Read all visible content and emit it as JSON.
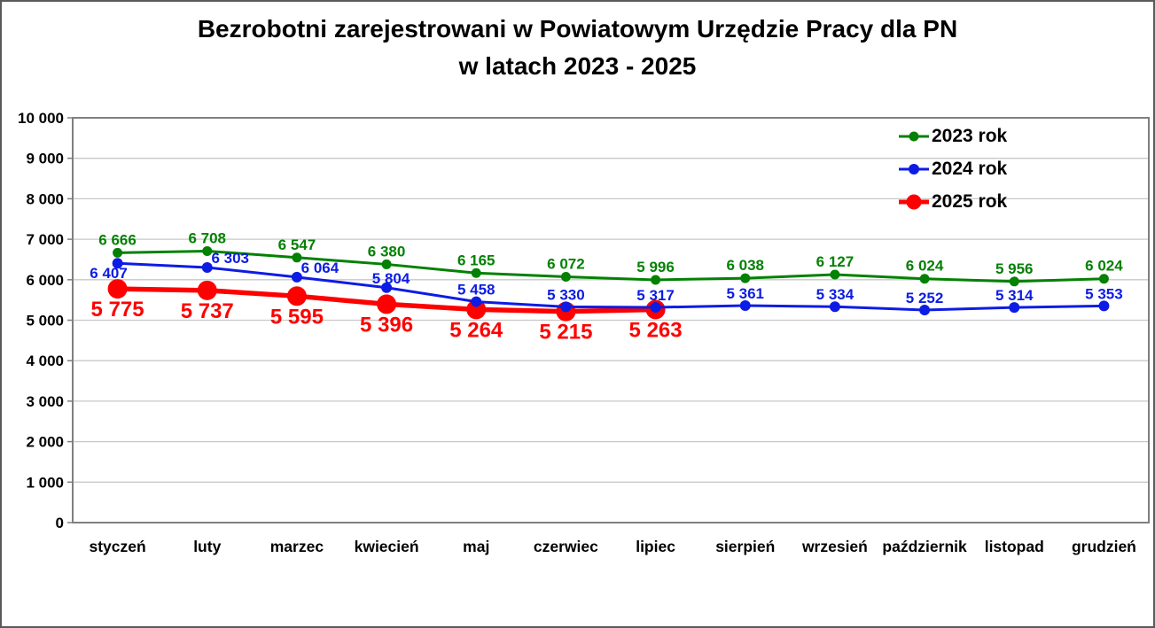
{
  "title": {
    "line1": "Bezrobotni zarejestrowani w Powiatowym Urzędzie Pracy dla PN",
    "line2": "w latach 2023 - 2025"
  },
  "chart_data": {
    "type": "line",
    "title": "Bezrobotni zarejestrowani w Powiatowym Urzędzie Pracy dla PN w latach 2023 - 2025",
    "categories": [
      "styczeń",
      "luty",
      "marzec",
      "kwiecień",
      "maj",
      "czerwiec",
      "lipiec",
      "sierpień",
      "wrzesień",
      "październik",
      "listopad",
      "grudzień"
    ],
    "series": [
      {
        "name": "2023 rok",
        "color": "#038103",
        "values": [
          6666,
          6708,
          6547,
          6380,
          6165,
          6072,
          5996,
          6038,
          6127,
          6024,
          5956,
          6024
        ]
      },
      {
        "name": "2024 rok",
        "color": "#0d1ce4",
        "values": [
          6407,
          6303,
          6064,
          5804,
          5458,
          5330,
          5317,
          5361,
          5334,
          5252,
          5314,
          5353
        ]
      },
      {
        "name": "2025 rok",
        "color": "#fe0000",
        "values": [
          5775,
          5737,
          5595,
          5396,
          5264,
          5215,
          5263
        ]
      }
    ],
    "xlabel": "",
    "ylabel": "",
    "ylim": [
      0,
      10000
    ],
    "ytick_step": 1000,
    "yticks": [
      0,
      1000,
      2000,
      3000,
      4000,
      5000,
      6000,
      7000,
      8000,
      9000,
      10000
    ],
    "grid": true,
    "gridline_color": "#c8c8c8",
    "axis_border_color": "#7f7f7f",
    "legend_position": "top-right",
    "data_labels_shown": true,
    "number_format": "space-thousands"
  }
}
